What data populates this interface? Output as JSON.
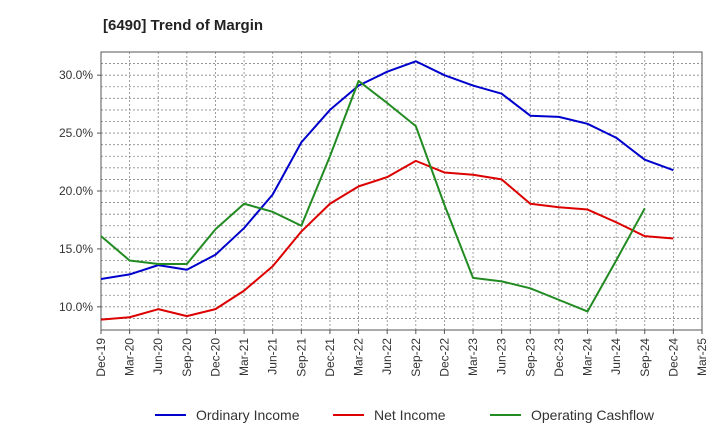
{
  "chart_data": {
    "type": "line",
    "title": "[6490]  Trend of Margin",
    "xlabel": "",
    "ylabel": "",
    "x": [
      "Dec-19",
      "Mar-20",
      "Jun-20",
      "Sep-20",
      "Dec-20",
      "Mar-21",
      "Jun-21",
      "Sep-21",
      "Dec-21",
      "Mar-22",
      "Jun-22",
      "Sep-22",
      "Dec-22",
      "Mar-23",
      "Jun-23",
      "Sep-23",
      "Dec-23",
      "Mar-24",
      "Jun-24",
      "Sep-24",
      "Dec-24",
      "Mar-25"
    ],
    "ylim": [
      8.0,
      32.0
    ],
    "yticks": [
      10.0,
      15.0,
      20.0,
      25.0,
      30.0
    ],
    "ytick_labels": [
      "10.0%",
      "15.0%",
      "20.0%",
      "25.0%",
      "30.0%"
    ],
    "grid": true,
    "legend_position": "bottom",
    "series": [
      {
        "name": "Ordinary Income",
        "color": "#0000cc",
        "values": [
          12.4,
          12.8,
          13.6,
          13.2,
          14.5,
          16.8,
          19.7,
          24.2,
          27.0,
          29.1,
          30.3,
          31.2,
          30.0,
          29.1,
          28.4,
          26.5,
          26.4,
          25.8,
          24.6,
          22.7,
          21.8,
          null
        ]
      },
      {
        "name": "Net Income",
        "color": "#dd0000",
        "values": [
          8.9,
          9.1,
          9.8,
          9.2,
          9.8,
          11.4,
          13.5,
          16.5,
          18.9,
          20.4,
          21.2,
          22.6,
          21.6,
          21.4,
          21.0,
          18.9,
          18.6,
          18.4,
          17.3,
          16.1,
          15.9,
          null
        ]
      },
      {
        "name": "Operating Cashflow",
        "color": "#228B22",
        "values": [
          16.1,
          14.0,
          13.7,
          13.7,
          16.7,
          18.9,
          18.2,
          17.0,
          23.0,
          29.5,
          27.6,
          25.6,
          18.8,
          12.5,
          12.2,
          11.6,
          10.6,
          9.6,
          14.0,
          18.5,
          null,
          null
        ]
      }
    ]
  }
}
